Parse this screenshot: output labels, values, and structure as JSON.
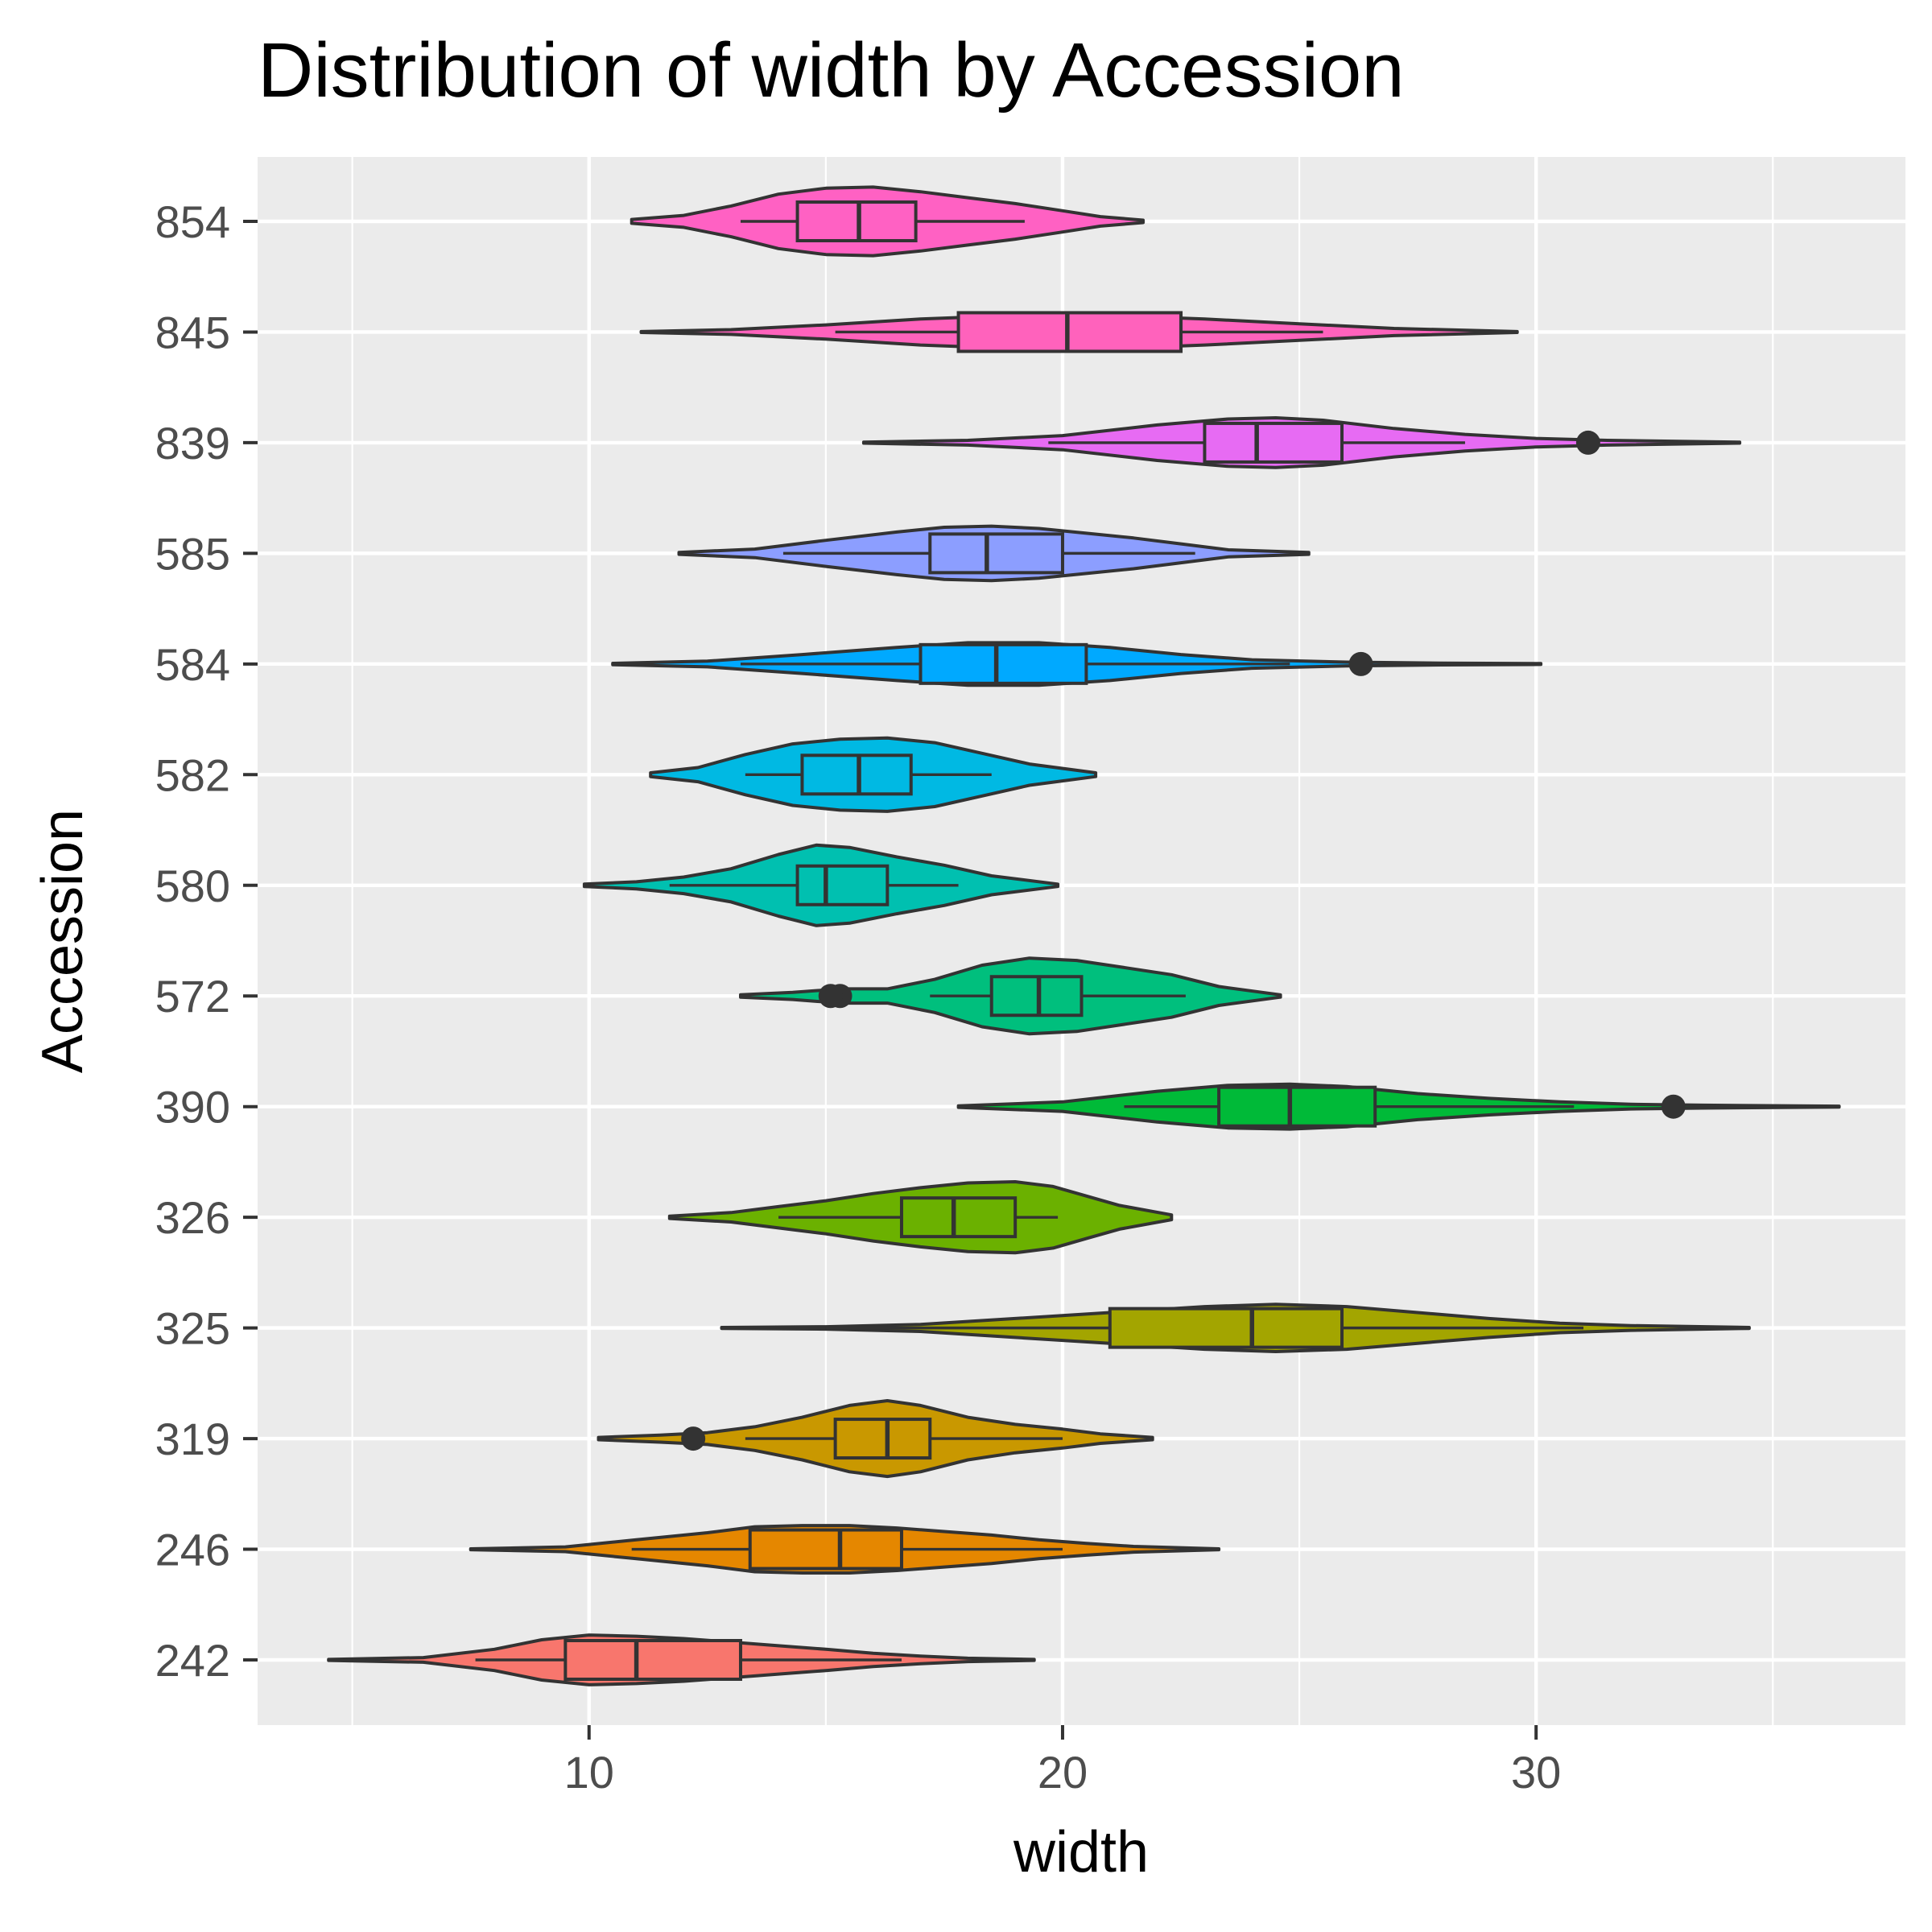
{
  "chart_data": {
    "type": "violin",
    "orientation": "horizontal",
    "title": "Distribution of width by Accession",
    "xlabel": "width",
    "ylabel": "Accession",
    "xlim": [
      3.0,
      37.8
    ],
    "x_ticks": [
      10,
      20,
      30
    ],
    "x_tick_labels": [
      "10",
      "20",
      "30"
    ],
    "grid": true,
    "panel_background": "#ebebeb",
    "legend": "none",
    "categories": [
      "242",
      "246",
      "319",
      "325",
      "326",
      "390",
      "572",
      "580",
      "582",
      "584",
      "585",
      "839",
      "845",
      "854"
    ],
    "series": [
      {
        "category": "242",
        "color": "#F8766D",
        "min": 4.5,
        "max": 19.4,
        "q1": 9.5,
        "median": 11.0,
        "q3": 13.2,
        "whisker_low": 7.6,
        "whisker_high": 16.6,
        "outliers": [],
        "density": [
          [
            4.5,
            0.002
          ],
          [
            6.5,
            0.01
          ],
          [
            8.0,
            0.045
          ],
          [
            9.0,
            0.085
          ],
          [
            10.0,
            0.105
          ],
          [
            11.0,
            0.1
          ],
          [
            12.0,
            0.09
          ],
          [
            13.0,
            0.075
          ],
          [
            14.0,
            0.06
          ],
          [
            15.0,
            0.045
          ],
          [
            16.0,
            0.028
          ],
          [
            17.0,
            0.016
          ],
          [
            18.0,
            0.007
          ],
          [
            19.4,
            0.002
          ]
        ]
      },
      {
        "category": "246",
        "color": "#E58700",
        "min": 7.5,
        "max": 23.3,
        "q1": 13.4,
        "median": 15.3,
        "q3": 16.6,
        "whisker_low": 10.9,
        "whisker_high": 20.0,
        "outliers": [],
        "density": [
          [
            7.5,
            0.002
          ],
          [
            9.5,
            0.01
          ],
          [
            11.0,
            0.04
          ],
          [
            12.5,
            0.07
          ],
          [
            13.5,
            0.095
          ],
          [
            14.5,
            0.1
          ],
          [
            15.5,
            0.1
          ],
          [
            16.5,
            0.09
          ],
          [
            17.5,
            0.075
          ],
          [
            18.5,
            0.06
          ],
          [
            19.5,
            0.04
          ],
          [
            20.5,
            0.025
          ],
          [
            21.5,
            0.012
          ],
          [
            23.3,
            0.002
          ]
        ]
      },
      {
        "category": "319",
        "color": "#C99800",
        "min": 10.2,
        "max": 21.9,
        "q1": 15.2,
        "median": 16.3,
        "q3": 17.2,
        "whisker_low": 13.3,
        "whisker_high": 20.0,
        "outliers": [
          12.2
        ],
        "density": [
          [
            10.2,
            0.005
          ],
          [
            11.5,
            0.015
          ],
          [
            12.5,
            0.025
          ],
          [
            13.5,
            0.05
          ],
          [
            14.5,
            0.09
          ],
          [
            15.5,
            0.14
          ],
          [
            16.3,
            0.16
          ],
          [
            17.0,
            0.14
          ],
          [
            18.0,
            0.09
          ],
          [
            19.0,
            0.06
          ],
          [
            20.0,
            0.04
          ],
          [
            20.8,
            0.02
          ],
          [
            21.9,
            0.005
          ]
        ]
      },
      {
        "category": "325",
        "color": "#A3A500",
        "min": 12.8,
        "max": 34.5,
        "q1": 21.0,
        "median": 24.0,
        "q3": 25.9,
        "whisker_low": 15.0,
        "whisker_high": 31.0,
        "outliers": [],
        "density": [
          [
            12.8,
            0.002
          ],
          [
            15.0,
            0.005
          ],
          [
            17.0,
            0.015
          ],
          [
            19.0,
            0.04
          ],
          [
            21.0,
            0.065
          ],
          [
            23.0,
            0.09
          ],
          [
            24.5,
            0.1
          ],
          [
            26.0,
            0.09
          ],
          [
            27.5,
            0.065
          ],
          [
            29.0,
            0.04
          ],
          [
            30.5,
            0.02
          ],
          [
            32.0,
            0.01
          ],
          [
            34.5,
            0.002
          ]
        ]
      },
      {
        "category": "326",
        "color": "#6BB100",
        "min": 11.7,
        "max": 22.3,
        "q1": 16.6,
        "median": 17.7,
        "q3": 19.0,
        "whisker_low": 14.0,
        "whisker_high": 19.9,
        "outliers": [],
        "density": [
          [
            11.7,
            0.005
          ],
          [
            13.0,
            0.02
          ],
          [
            14.0,
            0.045
          ],
          [
            15.0,
            0.07
          ],
          [
            16.0,
            0.1
          ],
          [
            17.0,
            0.125
          ],
          [
            18.0,
            0.145
          ],
          [
            19.0,
            0.15
          ],
          [
            19.8,
            0.13
          ],
          [
            20.5,
            0.09
          ],
          [
            21.2,
            0.05
          ],
          [
            22.3,
            0.01
          ]
        ]
      },
      {
        "category": "390",
        "color": "#00BA38",
        "min": 17.8,
        "max": 36.4,
        "q1": 23.3,
        "median": 24.8,
        "q3": 26.6,
        "whisker_low": 21.3,
        "whisker_high": 30.8,
        "outliers": [
          32.9
        ],
        "density": [
          [
            17.8,
            0.003
          ],
          [
            20.0,
            0.02
          ],
          [
            22.0,
            0.065
          ],
          [
            23.5,
            0.09
          ],
          [
            24.8,
            0.095
          ],
          [
            26.0,
            0.085
          ],
          [
            27.5,
            0.055
          ],
          [
            29.0,
            0.035
          ],
          [
            30.5,
            0.02
          ],
          [
            32.0,
            0.01
          ],
          [
            33.5,
            0.006
          ],
          [
            36.4,
            0.002
          ]
        ]
      },
      {
        "category": "572",
        "color": "#00BF7D",
        "min": 13.2,
        "max": 24.6,
        "q1": 18.5,
        "median": 19.5,
        "q3": 20.4,
        "whisker_low": 17.2,
        "whisker_high": 22.6,
        "outliers": [
          15.3,
          15.1
        ],
        "density": [
          [
            13.2,
            0.005
          ],
          [
            14.3,
            0.015
          ],
          [
            15.3,
            0.03
          ],
          [
            16.3,
            0.03
          ],
          [
            17.3,
            0.07
          ],
          [
            18.3,
            0.13
          ],
          [
            19.3,
            0.16
          ],
          [
            20.3,
            0.15
          ],
          [
            21.3,
            0.12
          ],
          [
            22.3,
            0.09
          ],
          [
            23.3,
            0.04
          ],
          [
            24.6,
            0.005
          ]
        ]
      },
      {
        "category": "580",
        "color": "#00C0B0",
        "min": 9.9,
        "max": 19.9,
        "q1": 14.4,
        "median": 15.0,
        "q3": 16.3,
        "whisker_low": 11.7,
        "whisker_high": 17.8,
        "outliers": [],
        "density": [
          [
            9.9,
            0.005
          ],
          [
            11.0,
            0.015
          ],
          [
            12.0,
            0.035
          ],
          [
            13.0,
            0.07
          ],
          [
            14.0,
            0.13
          ],
          [
            14.8,
            0.17
          ],
          [
            15.5,
            0.16
          ],
          [
            16.5,
            0.12
          ],
          [
            17.5,
            0.085
          ],
          [
            18.5,
            0.04
          ],
          [
            19.9,
            0.005
          ]
        ]
      },
      {
        "category": "582",
        "color": "#00B9E3",
        "min": 11.3,
        "max": 20.7,
        "q1": 14.5,
        "median": 15.7,
        "q3": 16.8,
        "whisker_low": 13.3,
        "whisker_high": 18.5,
        "outliers": [],
        "density": [
          [
            11.3,
            0.008
          ],
          [
            12.3,
            0.03
          ],
          [
            13.3,
            0.085
          ],
          [
            14.3,
            0.13
          ],
          [
            15.3,
            0.15
          ],
          [
            16.3,
            0.155
          ],
          [
            17.3,
            0.135
          ],
          [
            18.3,
            0.09
          ],
          [
            19.3,
            0.045
          ],
          [
            20.7,
            0.008
          ]
        ]
      },
      {
        "category": "584",
        "color": "#00A9FF",
        "min": 10.5,
        "max": 30.1,
        "q1": 17.0,
        "median": 18.6,
        "q3": 20.5,
        "whisker_low": 13.2,
        "whisker_high": 24.8,
        "outliers": [
          26.3
        ],
        "density": [
          [
            10.5,
            0.003
          ],
          [
            12.5,
            0.012
          ],
          [
            14.5,
            0.04
          ],
          [
            16.5,
            0.07
          ],
          [
            18.0,
            0.09
          ],
          [
            19.5,
            0.09
          ],
          [
            21.0,
            0.07
          ],
          [
            22.5,
            0.04
          ],
          [
            24.0,
            0.018
          ],
          [
            26.0,
            0.008
          ],
          [
            28.0,
            0.004
          ],
          [
            30.1,
            0.002
          ]
        ]
      },
      {
        "category": "585",
        "color": "#8C9EFF",
        "min": 11.9,
        "max": 25.2,
        "q1": 17.2,
        "median": 18.4,
        "q3": 20.0,
        "whisker_low": 14.1,
        "whisker_high": 22.8,
        "outliers": [],
        "density": [
          [
            11.9,
            0.004
          ],
          [
            13.5,
            0.018
          ],
          [
            15.0,
            0.055
          ],
          [
            16.5,
            0.09
          ],
          [
            17.5,
            0.11
          ],
          [
            18.5,
            0.115
          ],
          [
            19.5,
            0.105
          ],
          [
            20.5,
            0.085
          ],
          [
            21.5,
            0.065
          ],
          [
            22.5,
            0.04
          ],
          [
            23.5,
            0.015
          ],
          [
            25.2,
            0.004
          ]
        ]
      },
      {
        "category": "839",
        "color": "#E76BF3",
        "min": 15.8,
        "max": 34.3,
        "q1": 23.0,
        "median": 24.1,
        "q3": 25.9,
        "whisker_low": 19.7,
        "whisker_high": 28.5,
        "outliers": [
          31.1
        ],
        "density": [
          [
            15.8,
            0.002
          ],
          [
            18.0,
            0.01
          ],
          [
            20.0,
            0.03
          ],
          [
            22.0,
            0.075
          ],
          [
            23.5,
            0.1
          ],
          [
            24.5,
            0.105
          ],
          [
            25.5,
            0.095
          ],
          [
            27.0,
            0.06
          ],
          [
            28.5,
            0.035
          ],
          [
            30.0,
            0.018
          ],
          [
            31.5,
            0.01
          ],
          [
            34.3,
            0.002
          ]
        ]
      },
      {
        "category": "845",
        "color": "#FF62BC",
        "min": 11.1,
        "max": 29.6,
        "q1": 17.8,
        "median": 20.1,
        "q3": 22.5,
        "whisker_low": 15.2,
        "whisker_high": 25.5,
        "outliers": [],
        "density": [
          [
            11.1,
            0.002
          ],
          [
            13.0,
            0.01
          ],
          [
            15.0,
            0.03
          ],
          [
            17.0,
            0.055
          ],
          [
            19.0,
            0.07
          ],
          [
            21.0,
            0.07
          ],
          [
            23.0,
            0.055
          ],
          [
            25.0,
            0.035
          ],
          [
            27.0,
            0.015
          ],
          [
            29.6,
            0.002
          ]
        ]
      },
      {
        "category": "854",
        "color": "#FF61C3",
        "min": 10.9,
        "max": 21.7,
        "q1": 14.4,
        "median": 15.7,
        "q3": 16.9,
        "whisker_low": 13.2,
        "whisker_high": 19.2,
        "outliers": [],
        "density": [
          [
            10.9,
            0.008
          ],
          [
            12.0,
            0.025
          ],
          [
            13.0,
            0.065
          ],
          [
            14.0,
            0.115
          ],
          [
            15.0,
            0.14
          ],
          [
            16.0,
            0.145
          ],
          [
            17.0,
            0.125
          ],
          [
            18.0,
            0.1
          ],
          [
            19.0,
            0.075
          ],
          [
            20.0,
            0.045
          ],
          [
            20.8,
            0.02
          ],
          [
            21.7,
            0.005
          ]
        ]
      }
    ]
  }
}
